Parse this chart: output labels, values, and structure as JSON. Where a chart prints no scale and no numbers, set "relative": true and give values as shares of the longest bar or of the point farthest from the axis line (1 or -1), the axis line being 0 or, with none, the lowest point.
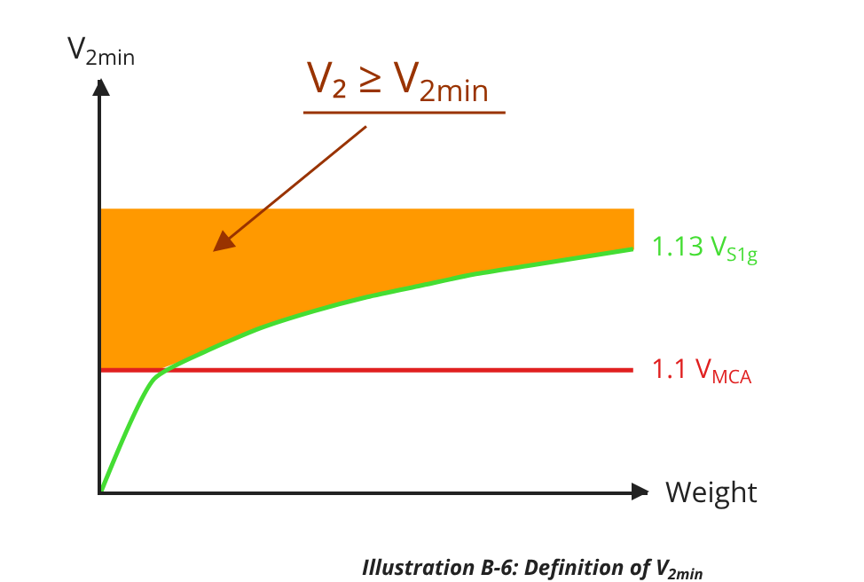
{
  "chart_data": {
    "type": "line",
    "relative": true,
    "xlabel": "Weight",
    "ylabel": "V$_{2min}$",
    "categories": [
      null,
      null,
      null,
      null,
      null,
      null,
      null,
      null,
      null,
      null,
      null
    ],
    "series": [
      {
        "type": "area",
        "color": "#ff9900",
        "values": [
          1,
          1,
          1,
          1,
          1,
          1,
          1,
          1,
          1,
          1,
          1
        ]
      },
      {
        "name": "1.1 V$_{MCA}$",
        "color": "#e02020",
        "values": [
          0.43,
          0.43,
          0.43,
          0.43,
          0.43,
          0.43,
          0.43,
          0.43,
          0.43,
          0.43,
          0.43
        ]
      },
      {
        "name": "1.13 V$_{S1g}$",
        "color": "#44dd33",
        "values": [
          0,
          0.4,
          0.5,
          0.58,
          0.64,
          0.69,
          0.73,
          0.77,
          0.8,
          0.83,
          0.86
        ]
      }
    ],
    "annotations": [
      "V₂ ≥ V$_{2min}$",
      "Illustration B-6: Definition of V$_{2min}$"
    ],
    "legend": false,
    "grid": false
  }
}
